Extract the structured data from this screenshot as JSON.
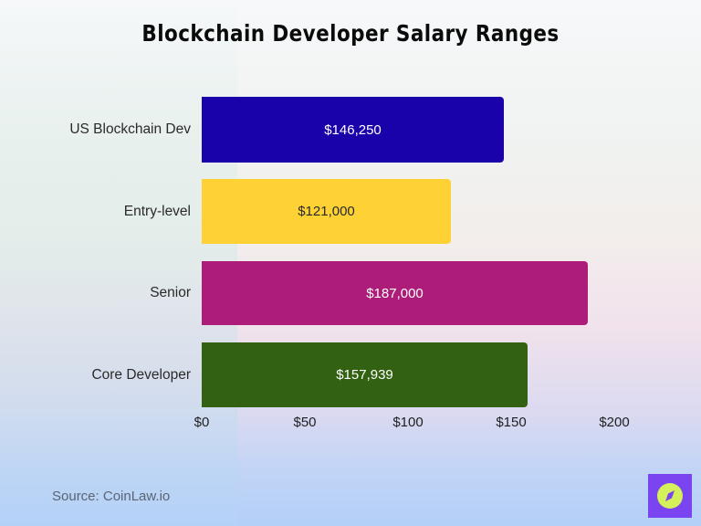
{
  "title": "Blockchain Developer Salary Ranges",
  "source": "Source: CoinLaw.io",
  "logo": {
    "icon": "compass-icon",
    "bg_color": "#7a45f0",
    "fg_color": "#d4f05a"
  },
  "axis": {
    "ticks": [
      "$0",
      "$50",
      "$100",
      "$150",
      "$200"
    ]
  },
  "bars": [
    {
      "label": "US Blockchain Dev",
      "value_label": "$146,250",
      "color": "#1a02ab",
      "text_color": "#ffffff"
    },
    {
      "label": "Entry-level",
      "value_label": "$121,000",
      "color": "#fed235",
      "text_color": "#2a2a2a"
    },
    {
      "label": "Senior",
      "value_label": "$187,000",
      "color": "#ad1c79",
      "text_color": "#ffffff"
    },
    {
      "label": "Core Developer",
      "value_label": "$157,939",
      "color": "#326111",
      "text_color": "#ffffff"
    }
  ],
  "chart_data": {
    "type": "bar",
    "orientation": "horizontal",
    "title": "Blockchain Developer Salary Ranges",
    "categories": [
      "US Blockchain Dev",
      "Entry-level",
      "Senior",
      "Core Developer"
    ],
    "values": [
      146250,
      121000,
      187000,
      157939
    ],
    "data_labels": [
      "$146,250",
      "$121,000",
      "$187,000",
      "$157,939"
    ],
    "colors": [
      "#1a02ab",
      "#fed235",
      "#ad1c79",
      "#326111"
    ],
    "xlabel": "",
    "ylabel": "",
    "x_tick_labels": [
      "$0",
      "$50",
      "$100",
      "$150",
      "$200"
    ],
    "x_tick_units": "thousands USD",
    "xlim": [
      0,
      200000
    ],
    "grid": false,
    "legend": null,
    "annotation": "Source: CoinLaw.io"
  }
}
